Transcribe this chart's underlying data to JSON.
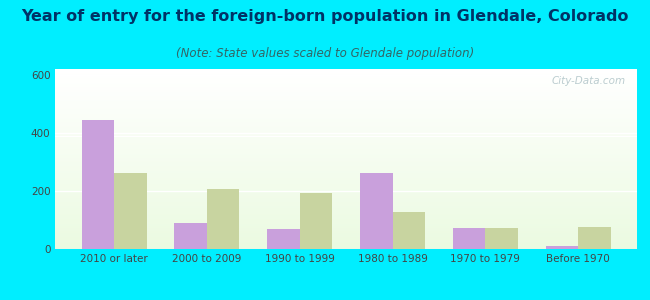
{
  "title": "Year of entry for the foreign-born population in Glendale, Colorado",
  "subtitle": "(Note: State values scaled to Glendale population)",
  "categories": [
    "2010 or later",
    "2000 to 2009",
    "1990 to 1999",
    "1980 to 1989",
    "1970 to 1979",
    "Before 1970"
  ],
  "glendale_values": [
    445,
    90,
    68,
    262,
    72,
    12
  ],
  "colorado_values": [
    262,
    205,
    192,
    128,
    72,
    75
  ],
  "glendale_color": "#c9a0dc",
  "colorado_color": "#c8d4a0",
  "background_outer": "#00eeff",
  "ylim": [
    0,
    620
  ],
  "yticks": [
    0,
    200,
    400,
    600
  ],
  "bar_width": 0.35,
  "title_fontsize": 11.5,
  "subtitle_fontsize": 8.5,
  "tick_fontsize": 7.5,
  "legend_fontsize": 8.5,
  "title_color": "#003366",
  "tick_color": "#444444",
  "watermark_text": "City-Data.com",
  "watermark_color": "#b0c4c8",
  "grid_color": "#ffffff"
}
